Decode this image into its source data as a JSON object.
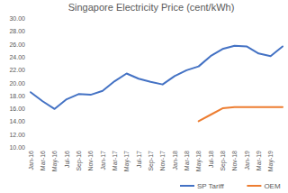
{
  "chart_data": {
    "type": "line",
    "title": "Singapore Electricity Price (cent/kWh)",
    "categories": [
      "Jan-16",
      "Mar-16",
      "May-16",
      "Jul-16",
      "Sep-16",
      "Nov-16",
      "Jan-17",
      "Mar-17",
      "May-17",
      "Jul-17",
      "Sep-17",
      "Nov-17",
      "Jan-18",
      "Mar-18",
      "May-18",
      "Jul-18",
      "Sep-18",
      "Nov-18",
      "Jan-19",
      "Mar-19",
      "May-19",
      null
    ],
    "series": [
      {
        "name": "SP Tariff",
        "color": "#4472c4",
        "values": [
          18.5,
          17.1,
          15.9,
          17.4,
          18.2,
          18.1,
          18.7,
          20.2,
          21.4,
          20.6,
          20.1,
          19.7,
          21.0,
          21.9,
          22.5,
          24.1,
          25.2,
          25.7,
          25.6,
          24.5,
          24.1,
          25.6
        ]
      },
      {
        "name": "OEM",
        "color": "#ed7d31",
        "values": [
          null,
          null,
          null,
          null,
          null,
          null,
          null,
          null,
          null,
          null,
          null,
          null,
          null,
          null,
          14.0,
          15.0,
          16.0,
          16.2,
          16.2,
          16.2,
          16.2,
          16.2
        ]
      }
    ],
    "ylim": [
      10,
      30
    ],
    "yticks": [
      {
        "value": 10,
        "label": "10.00"
      },
      {
        "value": 12,
        "label": "12.00"
      },
      {
        "value": 14,
        "label": "14.00"
      },
      {
        "value": 16,
        "label": "16.00"
      },
      {
        "value": 18,
        "label": "18.00"
      },
      {
        "value": 20,
        "label": "20.00"
      },
      {
        "value": 22,
        "label": "22.00"
      },
      {
        "value": 24,
        "label": "24.00"
      },
      {
        "value": 26,
        "label": "26.00"
      },
      {
        "value": 28,
        "label": "28.00"
      },
      {
        "value": 30,
        "label": "30.00"
      }
    ],
    "grid": false,
    "legend": "bottom"
  }
}
